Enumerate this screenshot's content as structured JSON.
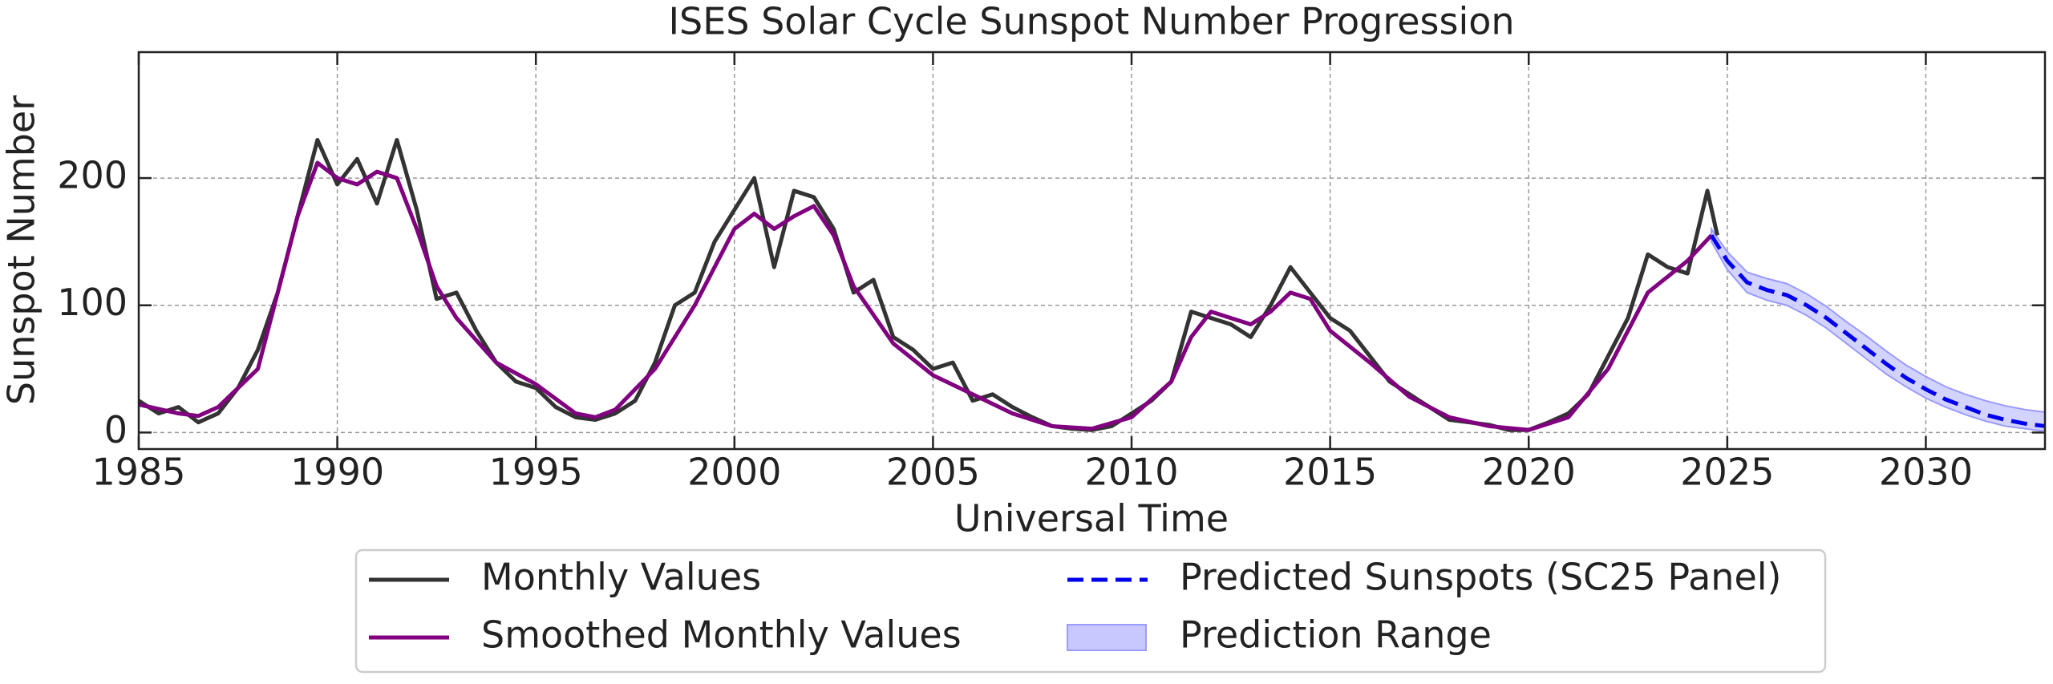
{
  "chart_data": {
    "type": "line",
    "title": "ISES Solar Cycle Sunspot Number Progression",
    "xlabel": "Universal Time",
    "ylabel": "Sunspot Number",
    "xlim": [
      1985,
      2033
    ],
    "ylim": [
      -13,
      299
    ],
    "xticks": [
      1985,
      1990,
      1995,
      2000,
      2005,
      2010,
      2015,
      2020,
      2025,
      2030
    ],
    "yticks": [
      0,
      100,
      200
    ],
    "grid": true,
    "legend": "below",
    "series": [
      {
        "name": "Monthly Values",
        "color": "#333333",
        "style": "solid",
        "x": [
          1985.0,
          1985.5,
          1986.0,
          1986.5,
          1987.0,
          1987.5,
          1988.0,
          1988.5,
          1989.0,
          1989.5,
          1990.0,
          1990.5,
          1991.0,
          1991.5,
          1992.0,
          1992.5,
          1993.0,
          1993.5,
          1994.0,
          1994.5,
          1995.0,
          1995.5,
          1996.0,
          1996.5,
          1997.0,
          1997.5,
          1998.0,
          1998.5,
          1999.0,
          1999.5,
          2000.0,
          2000.5,
          2001.0,
          2001.5,
          2002.0,
          2002.5,
          2003.0,
          2003.5,
          2004.0,
          2004.5,
          2005.0,
          2005.5,
          2006.0,
          2006.5,
          2007.0,
          2007.5,
          2008.0,
          2008.5,
          2009.0,
          2009.5,
          2010.0,
          2010.5,
          2011.0,
          2011.5,
          2012.0,
          2012.5,
          2013.0,
          2013.5,
          2014.0,
          2014.5,
          2015.0,
          2015.5,
          2016.0,
          2016.5,
          2017.0,
          2017.5,
          2018.0,
          2018.5,
          2019.0,
          2019.5,
          2020.0,
          2020.5,
          2021.0,
          2021.5,
          2022.0,
          2022.5,
          2023.0,
          2023.5,
          2024.0,
          2024.5,
          2024.75
        ],
        "values": [
          25,
          15,
          20,
          8,
          15,
          35,
          65,
          110,
          170,
          230,
          195,
          215,
          180,
          230,
          175,
          105,
          110,
          80,
          55,
          40,
          35,
          20,
          12,
          10,
          15,
          25,
          55,
          100,
          110,
          150,
          175,
          200,
          130,
          190,
          185,
          160,
          110,
          120,
          75,
          65,
          50,
          55,
          25,
          30,
          20,
          12,
          5,
          3,
          2,
          5,
          15,
          25,
          40,
          95,
          90,
          85,
          75,
          100,
          130,
          110,
          90,
          80,
          60,
          40,
          30,
          20,
          10,
          8,
          6,
          2,
          2,
          8,
          15,
          30,
          60,
          90,
          140,
          130,
          125,
          190,
          155
        ]
      },
      {
        "name": "Smoothed Monthly Values",
        "color": "#800080",
        "style": "solid",
        "x": [
          1985,
          1986,
          1986.5,
          1987,
          1988,
          1988.5,
          1989,
          1989.5,
          1990,
          1990.5,
          1991,
          1991.5,
          1992,
          1992.5,
          1993,
          1994,
          1995,
          1996,
          1996.5,
          1997,
          1998,
          1999,
          1999.5,
          2000,
          2000.5,
          2001,
          2001.5,
          2002,
          2002.5,
          2003,
          2004,
          2005,
          2006,
          2007,
          2008,
          2009,
          2010,
          2011,
          2011.5,
          2012,
          2012.5,
          2013,
          2013.5,
          2014,
          2014.5,
          2015,
          2016,
          2017,
          2018,
          2019,
          2020,
          2021,
          2022,
          2023,
          2024,
          2024.6
        ],
        "values": [
          22,
          15,
          13,
          20,
          50,
          110,
          170,
          212,
          200,
          195,
          205,
          200,
          160,
          115,
          90,
          55,
          38,
          15,
          12,
          18,
          50,
          100,
          130,
          160,
          172,
          160,
          170,
          178,
          155,
          115,
          70,
          45,
          30,
          15,
          5,
          3,
          12,
          40,
          75,
          95,
          90,
          85,
          95,
          110,
          105,
          80,
          55,
          28,
          12,
          5,
          2,
          12,
          50,
          110,
          135,
          155
        ]
      },
      {
        "name": "Predicted Sunspots (SC25 Panel)",
        "color": "#0000ee",
        "style": "dashed",
        "x": [
          2024.6,
          2025,
          2025.5,
          2026,
          2026.5,
          2027,
          2027.5,
          2028,
          2028.5,
          2029,
          2029.5,
          2030,
          2030.5,
          2031,
          2031.5,
          2032,
          2032.5,
          2033
        ],
        "values": [
          155,
          135,
          118,
          112,
          108,
          100,
          90,
          78,
          66,
          54,
          43,
          34,
          26,
          20,
          14,
          10,
          7,
          5
        ]
      },
      {
        "name": "Prediction Range",
        "color": "#c8c8ff",
        "style": "band",
        "x": [
          2024.6,
          2025,
          2025.5,
          2026,
          2026.5,
          2027,
          2027.5,
          2028,
          2028.5,
          2029,
          2029.5,
          2030,
          2030.5,
          2031,
          2031.5,
          2032,
          2032.5,
          2033
        ],
        "low": [
          150,
          128,
          110,
          104,
          100,
          92,
          82,
          70,
          58,
          46,
          36,
          27,
          20,
          14,
          9,
          5,
          3,
          1
        ],
        "high": [
          160,
          142,
          126,
          121,
          117,
          109,
          99,
          87,
          76,
          64,
          53,
          44,
          36,
          30,
          25,
          21,
          18,
          16
        ]
      }
    ]
  }
}
